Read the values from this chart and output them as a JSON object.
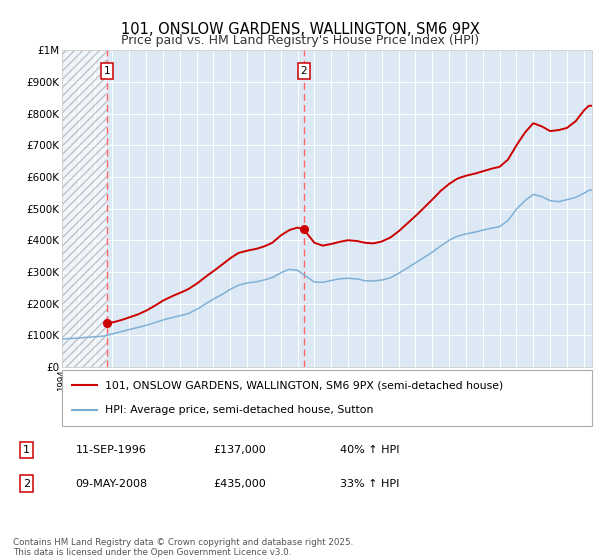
{
  "title": "101, ONSLOW GARDENS, WALLINGTON, SM6 9PX",
  "subtitle": "Price paid vs. HM Land Registry's House Price Index (HPI)",
  "legend_entry1": "101, ONSLOW GARDENS, WALLINGTON, SM6 9PX (semi-detached house)",
  "legend_entry2": "HPI: Average price, semi-detached house, Sutton",
  "annotation1_date": "11-SEP-1996",
  "annotation1_price": "£137,000",
  "annotation1_hpi": "40% ↑ HPI",
  "annotation2_date": "09-MAY-2008",
  "annotation2_price": "£435,000",
  "annotation2_hpi": "33% ↑ HPI",
  "footer": "Contains HM Land Registry data © Crown copyright and database right 2025.\nThis data is licensed under the Open Government Licence v3.0.",
  "xmin": 1994.0,
  "xmax": 2025.5,
  "ymin": 0,
  "ymax": 1000000,
  "sale1_x": 1996.7,
  "sale1_y": 137000,
  "sale2_x": 2008.36,
  "sale2_y": 435000,
  "red_color": "#cc0000",
  "blue_color": "#7aadd4",
  "bg_color": "#dce9f5",
  "title_fontsize": 10.5,
  "subtitle_fontsize": 9,
  "axis_fontsize": 7.5,
  "yticks": [
    0,
    100000,
    200000,
    300000,
    400000,
    500000,
    600000,
    700000,
    800000,
    900000,
    1000000
  ],
  "ylabels": [
    "£0",
    "£100K",
    "£200K",
    "£300K",
    "£400K",
    "£500K",
    "£600K",
    "£700K",
    "£800K",
    "£900K",
    "£1M"
  ]
}
